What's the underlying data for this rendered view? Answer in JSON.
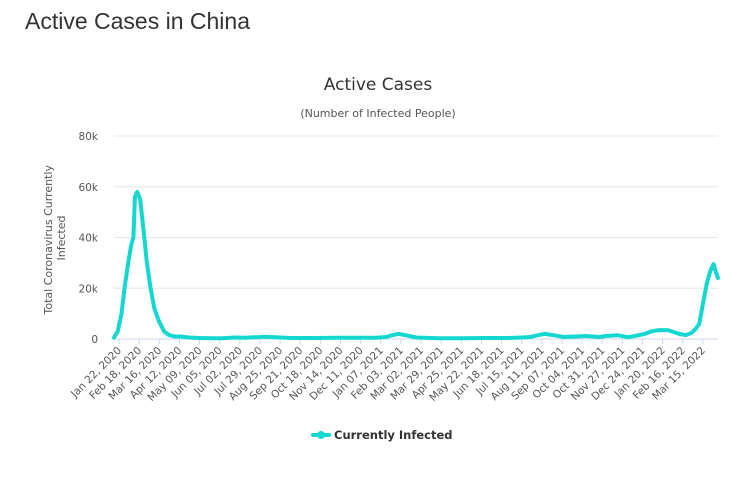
{
  "page_title": "Active Cases in China",
  "chart_data": {
    "type": "line",
    "title": "Active Cases",
    "subtitle": "(Number of Infected People)",
    "ylabel": "Total Coronavirus Currently Infected",
    "xlabel": "",
    "ylim": [
      0,
      80000
    ],
    "yticks": [
      0,
      20000,
      40000,
      60000,
      80000
    ],
    "ytick_labels": [
      "0",
      "20k",
      "40k",
      "60k",
      "80k"
    ],
    "xtick_labels": [
      "Jan 22, 2020",
      "Feb 18, 2020",
      "Mar 16, 2020",
      "Apr 12, 2020",
      "May 09, 2020",
      "Jun 05, 2020",
      "Jul 02, 2020",
      "Jul 29, 2020",
      "Aug 25, 2020",
      "Sep 21, 2020",
      "Oct 18, 2020",
      "Nov 14, 2020",
      "Dec 11, 2020",
      "Jan 07, 2021",
      "Feb 03, 2021",
      "Mar 02, 2021",
      "Mar 29, 2021",
      "Apr 25, 2021",
      "May 22, 2021",
      "Jun 18, 2021",
      "Jul 15, 2021",
      "Aug 11, 2021",
      "Sep 07, 2021",
      "Oct 04, 2021",
      "Oct 31, 2021",
      "Nov 27, 2021",
      "Dec 24, 2021",
      "Jan 20, 2022",
      "Feb 16, 2022",
      "Mar 15, 2022"
    ],
    "grid": true,
    "legend": "bottom-center",
    "color": "#14d8d0",
    "series": [
      {
        "name": "Currently Infected",
        "x": [
          "2020-01-22",
          "2020-01-27",
          "2020-02-01",
          "2020-02-05",
          "2020-02-10",
          "2020-02-14",
          "2020-02-17",
          "2020-02-19",
          "2020-02-22",
          "2020-02-26",
          "2020-03-01",
          "2020-03-06",
          "2020-03-11",
          "2020-03-16",
          "2020-03-22",
          "2020-03-29",
          "2020-04-05",
          "2020-04-12",
          "2020-04-20",
          "2020-05-01",
          "2020-05-15",
          "2020-06-01",
          "2020-06-15",
          "2020-07-01",
          "2020-07-15",
          "2020-07-30",
          "2020-08-10",
          "2020-08-25",
          "2020-09-15",
          "2020-10-15",
          "2020-11-15",
          "2020-12-15",
          "2021-01-07",
          "2021-01-20",
          "2021-01-28",
          "2021-02-05",
          "2021-02-15",
          "2021-03-01",
          "2021-04-01",
          "2021-05-01",
          "2021-06-01",
          "2021-07-01",
          "2021-07-20",
          "2021-08-01",
          "2021-08-11",
          "2021-08-20",
          "2021-09-01",
          "2021-09-15",
          "2021-10-01",
          "2021-10-15",
          "2021-11-01",
          "2021-11-10",
          "2021-11-25",
          "2021-12-10",
          "2021-12-24",
          "2022-01-01",
          "2022-01-10",
          "2022-01-20",
          "2022-02-01",
          "2022-02-16",
          "2022-02-25",
          "2022-03-05",
          "2022-03-10",
          "2022-03-15",
          "2022-03-20",
          "2022-03-25",
          "2022-03-30",
          "2022-04-03",
          "2022-04-06",
          "2022-04-09"
        ],
        "values": [
          500,
          3000,
          10000,
          20000,
          30000,
          37000,
          40000,
          56000,
          58000,
          55000,
          44000,
          30000,
          20000,
          12000,
          7000,
          3000,
          1500,
          1000,
          1000,
          600,
          400,
          300,
          300,
          600,
          500,
          700,
          900,
          700,
          400,
          400,
          500,
          500,
          500,
          800,
          1500,
          2000,
          1500,
          600,
          300,
          300,
          400,
          400,
          600,
          800,
          1500,
          2000,
          1500,
          800,
          1000,
          1200,
          800,
          1200,
          1500,
          700,
          1500,
          2000,
          3000,
          3500,
          3500,
          2000,
          1500,
          2500,
          4000,
          6000,
          14000,
          22000,
          27000,
          29500,
          26500,
          24000
        ]
      }
    ]
  }
}
